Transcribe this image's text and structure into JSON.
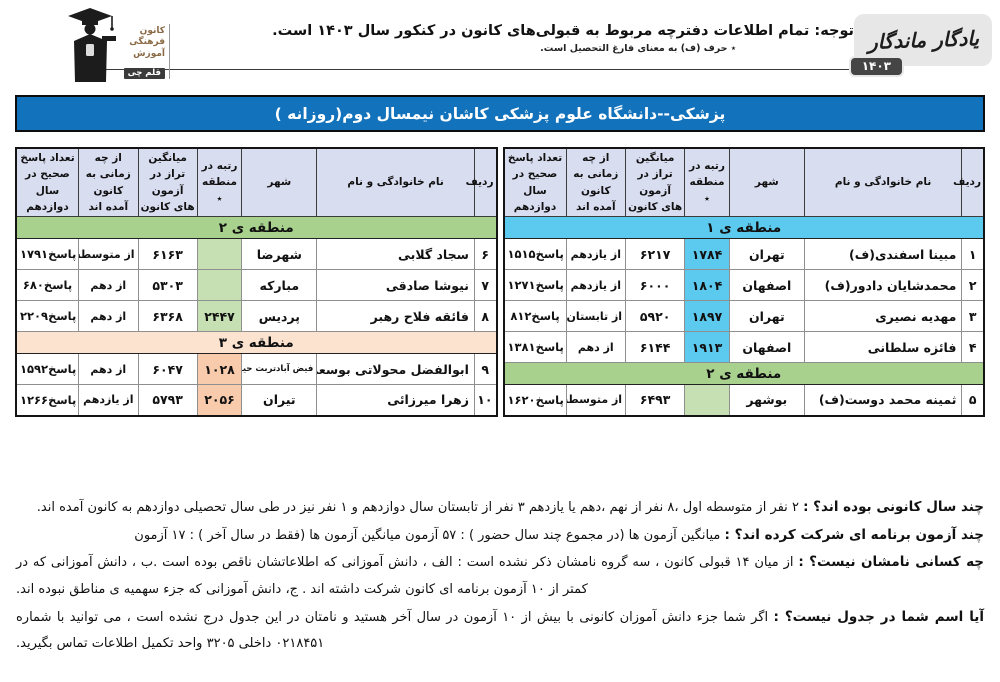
{
  "brand": {
    "kanoon_lines": [
      "کانون",
      "فرهنگی",
      "آموزش"
    ],
    "kanoon_highlight": "قلم چی",
    "yadegar": "یادگار ماندگار",
    "year": "۱۴۰۳"
  },
  "notice": {
    "main": "توجه: تمام اطلاعات دفترچه مربوط به قبولی‌های کانون در کنکور سال ۱۴۰۳ است.",
    "footnote": "٭ حرف (ف) به معنای فارغ التحصیل است."
  },
  "title": "پزشکی--دانشگاه علوم پزشکی کاشان نیمسال دوم(روزانه )",
  "columns": [
    "ردیف",
    "نام خانوادگی و نام",
    "شهر",
    "رتبه در منطقه ٭",
    "میانگین تراز در آزمون های کانون",
    "از چه زمانی به کانون آمده اند",
    "تعداد پاسخ صحیح در سال دوازدهم"
  ],
  "colors": {
    "title_bg": "#1273BC",
    "header_cell_bg": "#D9DDF0",
    "region1_cyan": "#5CC9EF",
    "region2_band_green": "#A9D18E",
    "region2_cell_green": "#C6E0B4",
    "region3_band_peach": "#FBE3D0",
    "region3_cell_peach": "#F8CBAD"
  },
  "tables": {
    "right": {
      "sections": [
        {
          "label": "منطقه ی ۱",
          "color": "cyan",
          "rows": [
            {
              "num": "۱",
              "name": "مبینا اسفندی(ف)",
              "city": "تهران",
              "rank": "۱۷۸۴",
              "score": "۶۲۱۷",
              "since": "از یازدهم",
              "answers": "۱۵۱۵پاسخ"
            },
            {
              "num": "۲",
              "name": "محمدشایان دادور(ف)",
              "city": "اصفهان",
              "rank": "۱۸۰۴",
              "score": "۶۰۰۰",
              "since": "از یازدهم",
              "answers": "۱۲۷۱پاسخ"
            },
            {
              "num": "۳",
              "name": "مهدیه نصیری",
              "city": "تهران",
              "rank": "۱۸۹۷",
              "score": "۵۹۲۰",
              "since": "از تابستان",
              "answers": "۸۱۲پاسخ"
            },
            {
              "num": "۴",
              "name": "فائزه سلطانی",
              "city": "اصفهان",
              "rank": "۱۹۱۳",
              "score": "۶۱۴۴",
              "since": "از دهم",
              "answers": "۱۳۸۱پاسخ"
            }
          ]
        },
        {
          "label": "منطقه ی ۲",
          "color": "green",
          "rows": [
            {
              "num": "۵",
              "name": "ثمینه محمد دوست(ف)",
              "city": "بوشهر",
              "rank": "",
              "score": "۶۴۹۳",
              "since": "از متوسطه اول",
              "answers": "۱۶۲۰پاسخ"
            }
          ]
        }
      ]
    },
    "left": {
      "sections": [
        {
          "label": "منطقه ی ۲",
          "color": "green",
          "rows": [
            {
              "num": "۶",
              "name": "سجاد گلابی",
              "city": "شهرضا",
              "rank": "",
              "score": "۶۱۶۳",
              "since": "از متوسطه اول",
              "answers": "۱۷۹۱پاسخ"
            },
            {
              "num": "۷",
              "name": "نیوشا صادقی",
              "city": "مبارکه",
              "rank": "",
              "score": "۵۳۰۳",
              "since": "از دهم",
              "answers": "۶۸۰پاسخ"
            },
            {
              "num": "۸",
              "name": "فائقه فلاح رهبر",
              "city": "پردیس",
              "rank": "۲۴۴۷",
              "score": "۶۳۶۸",
              "since": "از دهم",
              "answers": "۲۲۰۹پاسخ"
            }
          ]
        },
        {
          "label": "منطقه ی ۳",
          "color": "peach",
          "rows": [
            {
              "num": "۹",
              "name": "ابوالفضل محولاتی بوسعد",
              "city": "فیض آبادتربت حیدریه",
              "rank": "۱۰۲۸",
              "score": "۶۰۴۷",
              "since": "از دهم",
              "answers": "۱۵۹۲پاسخ"
            },
            {
              "num": "۱۰",
              "name": "زهرا میرزائی",
              "city": "تیران",
              "rank": "۲۰۵۶",
              "score": "۵۷۹۳",
              "since": "از یازدهم",
              "answers": "۱۲۶۶پاسخ"
            }
          ]
        }
      ]
    }
  },
  "notes": [
    {
      "q": "چند سال کانونی بوده اند؟ :",
      "a": " ۲ نفر از متوسطه اول ،۸ نفر از نهم ،دهم یا یازدهم  ۳ نفر از تابستان سال دوازدهم و ۱ نفر نیز در طی سال تحصیلی دوازدهم به کانون آمده اند."
    },
    {
      "q": "چند آزمون برنامه ای شرکت کرده اند؟ :",
      "a": " میانگین آزمون ها (در مجموع چند سال حضور ) : ۵۷ آزمون      میانگین آزمون ها (فقط در سال آخر ) : ۱۷ آزمون"
    },
    {
      "q": "چه کسانی نامشان نیست؟ :",
      "a": " از میان ۱۴ قبولی کانون ، سه گروه نامشان ذکر نشده است : الف ، دانش آموزانی که اطلاعاتشان ناقص بوده است .ب ، دانش آموزانی که در کمتر از ۱۰ آزمون برنامه ای کانون شرکت داشته اند . ج، دانش آموزانی که جزء سهمیه ی مناطق نبوده اند."
    },
    {
      "q": "آیا اسم شما در جدول نیست؟ :",
      "a": " اگر شما جزء دانش آموزان کانونی با بیش از ۱۰ آزمون در سال آخر هستید و نامتان در این جدول درج نشده است ، می توانید با شماره ۰۲۱۸۴۵۱ داخلی ۳۲۰۵ واحد تکمیل اطلاعات تماس بگیرید."
    }
  ]
}
